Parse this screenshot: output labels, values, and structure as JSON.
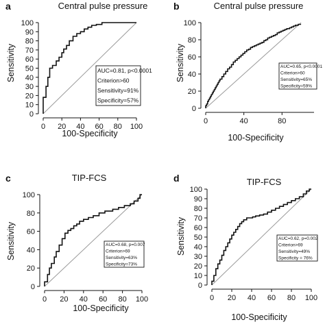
{
  "chart_data": [
    {
      "type": "line",
      "panel_label": "a",
      "title": "Central pulse pressure",
      "xlabel": "100-Specificity",
      "ylabel": "Sensitivity",
      "xlim": [
        0,
        100
      ],
      "ylim": [
        0,
        100
      ],
      "xticks": [
        "0",
        "20",
        "40",
        "60",
        "80",
        "100"
      ],
      "yticks": [
        "0",
        "10",
        "20",
        "30",
        "40",
        "50",
        "60",
        "70",
        "80",
        "90",
        "100"
      ],
      "grid": false,
      "series": [
        {
          "x": [
            0,
            0,
            3,
            3,
            5,
            5,
            7,
            7,
            10,
            10,
            14,
            14,
            17,
            17,
            20,
            20,
            22,
            22,
            25,
            25,
            28,
            28,
            32,
            32,
            36,
            36,
            40,
            40,
            44,
            44,
            48,
            48,
            52,
            52,
            57,
            57,
            63,
            63,
            70,
            70,
            100
          ],
          "y": [
            0,
            18,
            18,
            30,
            30,
            40,
            40,
            50,
            50,
            53,
            53,
            58,
            58,
            62,
            62,
            67,
            67,
            71,
            71,
            75,
            75,
            80,
            80,
            85,
            85,
            88,
            88,
            90,
            90,
            93,
            93,
            95,
            95,
            97,
            97,
            98,
            98,
            100,
            100,
            100,
            100
          ]
        },
        {
          "x": [
            0,
            100
          ],
          "y": [
            0,
            100
          ]
        }
      ],
      "annotation": [
        "AUC=0.81, p<0.0001",
        "Criterion>60",
        "Sensitivity=91%",
        "Specificity=57%"
      ]
    },
    {
      "type": "line",
      "panel_label": "b",
      "title": "Central pulse pressure",
      "xlabel": "100-Specificity",
      "ylabel": "Sensitivity",
      "xlim": [
        0,
        100
      ],
      "ylim": [
        0,
        100
      ],
      "xticks": [
        "0",
        "40",
        "80"
      ],
      "yticks": [
        "0",
        "20",
        "40",
        "60",
        "80",
        "100"
      ],
      "grid": false,
      "series": [
        {
          "x": [
            0,
            0,
            1,
            1,
            2,
            2,
            3,
            3,
            4,
            4,
            5,
            5,
            6,
            6,
            7,
            7,
            8,
            8,
            9,
            9,
            10,
            10,
            11,
            11,
            12,
            12,
            13,
            13,
            14,
            14,
            15,
            15,
            17,
            17,
            19,
            19,
            21,
            21,
            23,
            23,
            25,
            25,
            27,
            27,
            29,
            29,
            31,
            31,
            33,
            33,
            35,
            35,
            37,
            37,
            39,
            39,
            41,
            41,
            43,
            43,
            45,
            45,
            47,
            47,
            49,
            49,
            51,
            51,
            53,
            53,
            55,
            55,
            57,
            57,
            59,
            59,
            61,
            61,
            63,
            63,
            65,
            65,
            67,
            67,
            69,
            69,
            71,
            71,
            73,
            73,
            75,
            75,
            77,
            77,
            79,
            79,
            81,
            81,
            83,
            83,
            85,
            85,
            88,
            88,
            90,
            90,
            92,
            92,
            94,
            94,
            97,
            97,
            100
          ],
          "y": [
            0,
            3,
            3,
            5,
            5,
            8,
            8,
            10,
            10,
            12,
            12,
            14,
            14,
            16,
            16,
            18,
            18,
            20,
            20,
            22,
            22,
            24,
            24,
            26,
            26,
            28,
            28,
            30,
            30,
            32,
            32,
            34,
            34,
            37,
            37,
            40,
            40,
            43,
            43,
            46,
            46,
            48,
            48,
            51,
            51,
            54,
            54,
            56,
            56,
            58,
            58,
            60,
            60,
            62,
            62,
            64,
            64,
            66,
            66,
            68,
            68,
            69,
            69,
            71,
            71,
            72,
            72,
            73,
            73,
            74,
            74,
            75,
            75,
            76,
            76,
            77,
            77,
            79,
            79,
            80,
            80,
            82,
            82,
            83,
            83,
            84,
            84,
            85,
            85,
            86,
            86,
            88,
            88,
            89,
            89,
            90,
            90,
            91,
            91,
            92,
            92,
            93,
            93,
            94,
            94,
            95,
            95,
            96,
            96,
            97,
            97,
            98,
            98
          ]
        },
        {
          "x": [
            0,
            100
          ],
          "y": [
            0,
            100
          ]
        }
      ],
      "annotation": [
        "AUC=0.65, p<0.0001",
        "Criterion>60",
        "Sensitivity=65%",
        "Specificity=59%"
      ]
    },
    {
      "type": "line",
      "panel_label": "c",
      "title": "TIP-FCS",
      "xlabel": "100-Specificity",
      "ylabel": "Sensitivity",
      "xlim": [
        0,
        100
      ],
      "ylim": [
        0,
        100
      ],
      "xticks": [
        "0",
        "20",
        "40",
        "60",
        "80",
        "100"
      ],
      "yticks": [
        "0",
        "20",
        "40",
        "60",
        "80",
        "100"
      ],
      "grid": false,
      "series": [
        {
          "x": [
            0,
            0,
            3,
            3,
            5,
            5,
            7,
            7,
            10,
            10,
            12,
            12,
            15,
            15,
            18,
            18,
            21,
            21,
            24,
            24,
            27,
            27,
            30,
            30,
            33,
            33,
            36,
            36,
            40,
            40,
            45,
            45,
            50,
            50,
            56,
            56,
            62,
            62,
            70,
            70,
            76,
            76,
            82,
            82,
            88,
            88,
            92,
            92,
            96,
            96,
            98,
            98,
            100
          ],
          "y": [
            0,
            5,
            5,
            13,
            13,
            20,
            20,
            25,
            25,
            32,
            32,
            38,
            38,
            45,
            45,
            52,
            52,
            58,
            58,
            61,
            61,
            63,
            63,
            66,
            66,
            68,
            68,
            71,
            71,
            73,
            73,
            75,
            75,
            77,
            77,
            80,
            80,
            82,
            82,
            84,
            84,
            86,
            86,
            88,
            88,
            90,
            90,
            93,
            93,
            96,
            96,
            100,
            100
          ]
        },
        {
          "x": [
            0,
            100
          ],
          "y": [
            0,
            100
          ]
        }
      ],
      "annotation": [
        "AUC=0.68, p=0.007",
        "Criterion>69",
        "Sensitivity=63%",
        "Specificity=73%"
      ]
    },
    {
      "type": "line",
      "panel_label": "d",
      "title": "TIP-FCS",
      "xlabel": "100-Specificity",
      "ylabel": "Sensitivity",
      "xlim": [
        0,
        100
      ],
      "ylim": [
        0,
        100
      ],
      "xticks": [
        "0",
        "20",
        "40",
        "60",
        "80",
        "100"
      ],
      "yticks": [
        "0",
        "10",
        "20",
        "30",
        "40",
        "50",
        "60",
        "70",
        "80",
        "90",
        "100"
      ],
      "grid": false,
      "series": [
        {
          "x": [
            0,
            0,
            2,
            2,
            4,
            4,
            6,
            6,
            8,
            8,
            10,
            10,
            12,
            12,
            14,
            14,
            16,
            16,
            18,
            18,
            20,
            20,
            22,
            22,
            24,
            24,
            26,
            26,
            28,
            28,
            30,
            30,
            32,
            32,
            35,
            35,
            38,
            38,
            41,
            41,
            44,
            44,
            48,
            48,
            52,
            52,
            56,
            56,
            60,
            60,
            64,
            64,
            68,
            68,
            72,
            72,
            76,
            76,
            80,
            80,
            84,
            84,
            88,
            88,
            92,
            92,
            95,
            95,
            98,
            98,
            100
          ],
          "y": [
            0,
            4,
            4,
            10,
            10,
            17,
            17,
            22,
            22,
            26,
            26,
            31,
            31,
            36,
            36,
            40,
            40,
            44,
            44,
            48,
            48,
            52,
            52,
            55,
            55,
            58,
            58,
            61,
            61,
            64,
            64,
            66,
            66,
            68,
            68,
            70,
            70,
            70,
            70,
            71,
            71,
            72,
            72,
            73,
            73,
            74,
            74,
            76,
            76,
            78,
            78,
            80,
            80,
            82,
            82,
            84,
            84,
            86,
            86,
            88,
            88,
            90,
            90,
            92,
            92,
            95,
            95,
            98,
            98,
            100,
            100
          ]
        },
        {
          "x": [
            0,
            100
          ],
          "y": [
            0,
            100
          ]
        }
      ],
      "annotation": [
        "AUC=0.62, p=0.002",
        "Criterion>69",
        "Sensitivity=49%",
        "Specificity = 76%"
      ]
    }
  ]
}
